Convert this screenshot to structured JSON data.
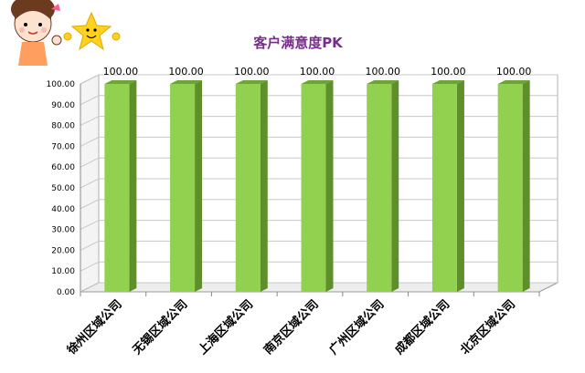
{
  "chart_data": {
    "type": "bar",
    "title": "客户满意度PK",
    "categories": [
      "徐州区域公司",
      "无锡区域公司",
      "上海区域公司",
      "南京区域公司",
      "广州区域公司",
      "成都区域公司",
      "北京区域公司"
    ],
    "values": [
      100.0,
      100.0,
      100.0,
      100.0,
      100.0,
      100.0,
      100.0
    ],
    "data_labels": [
      "100.00",
      "100.00",
      "100.00",
      "100.00",
      "100.00",
      "100.00",
      "100.00"
    ],
    "yticks": [
      "0.00",
      "10.00",
      "20.00",
      "30.00",
      "40.00",
      "50.00",
      "60.00",
      "70.00",
      "80.00",
      "90.00",
      "100.00"
    ],
    "ylim": [
      0,
      100
    ],
    "grid": true,
    "bar_color": "#92d050",
    "bar_side_color": "#5f8f2a",
    "bar_top_color": "#6ea33a"
  },
  "decorations": {
    "cartoon_girl": "thumbs-up-girl-icon",
    "cartoon_star": "smiling-star-icon"
  }
}
